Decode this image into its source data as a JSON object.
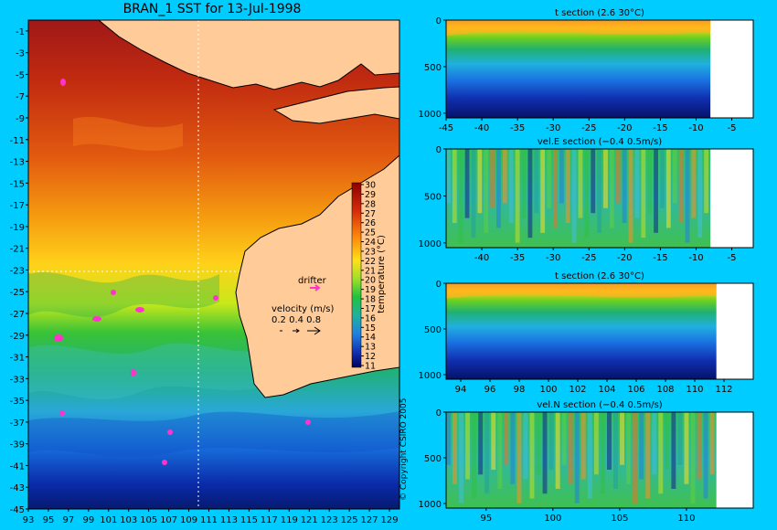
{
  "map": {
    "title": "BRAN_1 SST for 13-Jul-1998",
    "x_ticks": [
      "93",
      "95",
      "97",
      "99",
      "101",
      "103",
      "105",
      "107",
      "109",
      "111",
      "113",
      "115",
      "117",
      "119",
      "121",
      "123",
      "125",
      "127",
      "129"
    ],
    "y_ticks": [
      "-1",
      "-3",
      "-5",
      "-7",
      "-9",
      "-11",
      "-13",
      "-15",
      "-17",
      "-19",
      "-21",
      "-23",
      "-25",
      "-27",
      "-29",
      "-31",
      "-33",
      "-35",
      "-37",
      "-39",
      "-41",
      "-43",
      "-45"
    ],
    "colorbar": {
      "label": "temperature (°C)",
      "ticks": [
        "30",
        "29",
        "28",
        "27",
        "26",
        "25",
        "24",
        "23",
        "22",
        "21",
        "20",
        "19",
        "18",
        "17",
        "16",
        "15",
        "14",
        "13",
        "12",
        "11"
      ]
    },
    "drifter_label": "drifter",
    "velocity_label": "velocity (m/s)",
    "velocity_scale": "0.2 0.4 0.8",
    "copyright": "© Copyright CSIRO 2005"
  },
  "colors": {
    "background": "#00ccff",
    "land": "#ffcc99",
    "drifter": "#ff33cc"
  },
  "chart_data": [
    {
      "type": "heatmap",
      "title": "BRAN_1 SST for 13-Jul-1998",
      "xlabel": "",
      "ylabel": "",
      "xlim": [
        93,
        130
      ],
      "ylim": [
        -45,
        0
      ],
      "x_ticks": [
        93,
        95,
        97,
        99,
        101,
        103,
        105,
        107,
        109,
        111,
        113,
        115,
        117,
        119,
        121,
        123,
        125,
        127,
        129
      ],
      "y_ticks": [
        -1,
        -3,
        -5,
        -7,
        -9,
        -11,
        -13,
        -15,
        -17,
        -19,
        -21,
        -23,
        -25,
        -27,
        -29,
        -31,
        -33,
        -35,
        -37,
        -39,
        -41,
        -43,
        -45
      ],
      "colorbar": {
        "label": "temperature (°C)",
        "range": [
          11,
          30
        ]
      },
      "sst_by_latitude": [
        {
          "lat": -1,
          "temp": 29.5
        },
        {
          "lat": -5,
          "temp": 29.5
        },
        {
          "lat": -9,
          "temp": 28.5
        },
        {
          "lat": -13,
          "temp": 27.5
        },
        {
          "lat": -17,
          "temp": 26.5
        },
        {
          "lat": -21,
          "temp": 25
        },
        {
          "lat": -25,
          "temp": 23
        },
        {
          "lat": -29,
          "temp": 20
        },
        {
          "lat": -33,
          "temp": 18
        },
        {
          "lat": -37,
          "temp": 16
        },
        {
          "lat": -41,
          "temp": 14
        },
        {
          "lat": -45,
          "temp": 12
        }
      ]
    },
    {
      "type": "heatmap",
      "title": "t section (2.6      30°C)",
      "xlim": [
        -45,
        -2
      ],
      "ylim": [
        1050,
        0
      ],
      "x_ticks": [
        -45,
        -40,
        -35,
        -30,
        -25,
        -20,
        -15,
        -10,
        -5
      ],
      "y_ticks": [
        0,
        500,
        1000
      ],
      "range": [
        2.6,
        30
      ]
    },
    {
      "type": "heatmap",
      "title": "vel.E section (−0.4      0.5m/s)",
      "xlim": [
        -45,
        -2
      ],
      "ylim": [
        1050,
        0
      ],
      "x_ticks": [
        -40,
        -35,
        -30,
        -25,
        -20,
        -15,
        -10,
        -5
      ],
      "y_ticks": [
        0,
        500,
        1000
      ],
      "range": [
        -0.4,
        0.5
      ]
    },
    {
      "type": "heatmap",
      "title": "t section (2.6      30°C)",
      "xlim": [
        93,
        114
      ],
      "ylim": [
        1050,
        0
      ],
      "x_ticks": [
        94,
        96,
        98,
        100,
        102,
        104,
        106,
        108,
        110,
        112
      ],
      "y_ticks": [
        0,
        500,
        1000
      ],
      "range": [
        2.6,
        30
      ]
    },
    {
      "type": "heatmap",
      "title": "vel.N section (−0.4      0.5m/s)",
      "xlim": [
        92,
        115
      ],
      "ylim": [
        1050,
        0
      ],
      "x_ticks": [
        95,
        100,
        105,
        110
      ],
      "y_ticks": [
        0,
        500,
        1000
      ],
      "range": [
        -0.4,
        0.5
      ]
    }
  ]
}
